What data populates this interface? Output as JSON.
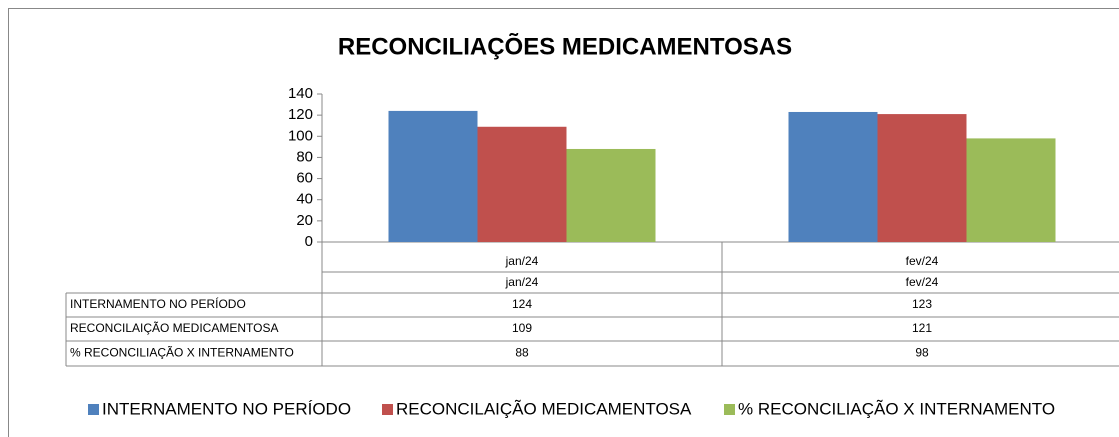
{
  "chart_data": {
    "type": "bar",
    "title": "RECONCILIAÇÕES MEDICAMENTOSAS",
    "categories": [
      "jan/24",
      "fev/24"
    ],
    "series": [
      {
        "name": "INTERNAMENTO NO PERÍODO",
        "color": "#4f81bd",
        "values": [
          124,
          123
        ]
      },
      {
        "name": "RECONCILAIÇÃO MEDICAMENTOSA",
        "color": "#c0504d",
        "values": [
          109,
          121
        ]
      },
      {
        "name": "% RECONCILIAÇÃO X INTERNAMENTO",
        "color": "#9bbb59",
        "values": [
          88,
          98
        ]
      }
    ],
    "ylim": [
      0,
      140
    ],
    "yticks": [
      0,
      20,
      40,
      60,
      80,
      100,
      120,
      140
    ],
    "grid": false,
    "legend": "bottom"
  }
}
